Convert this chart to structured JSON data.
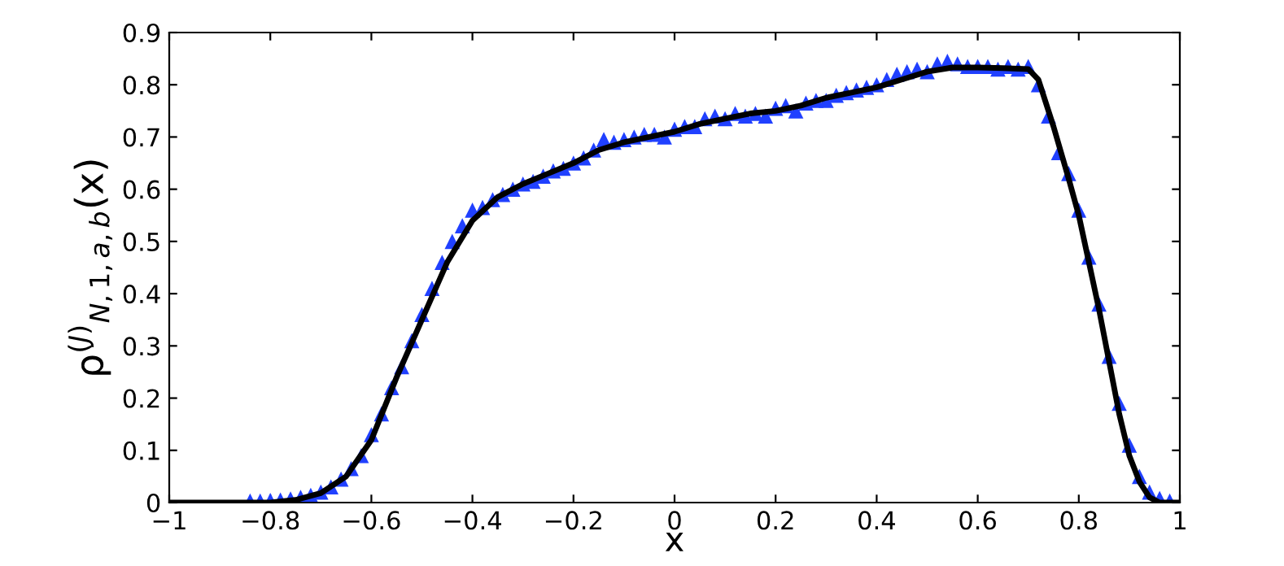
{
  "chart_data": {
    "type": "line",
    "xlabel": "x",
    "ylabel": "ρ$^{(J)}$$_{N,1,a,b}$(x)",
    "xlim": [
      -1,
      1
    ],
    "ylim": [
      0,
      0.9
    ],
    "xticks": [
      {
        "value": -1,
        "label": "−1"
      },
      {
        "value": -0.8,
        "label": "−0.8"
      },
      {
        "value": -0.6,
        "label": "−0.6"
      },
      {
        "value": -0.4,
        "label": "−0.4"
      },
      {
        "value": -0.2,
        "label": "−0.2"
      },
      0,
      0.2,
      0.4,
      0.6,
      0.8,
      1
    ],
    "yticks": [
      0,
      0.1,
      0.2,
      0.3,
      0.4,
      0.5,
      0.6,
      0.7,
      0.8,
      0.9
    ],
    "grid": false,
    "legend": false,
    "series": [
      {
        "type": "scatter",
        "marker": "triangle",
        "color": "#2040ff",
        "x": [
          -0.84,
          -0.82,
          -0.8,
          -0.78,
          -0.76,
          -0.74,
          -0.72,
          -0.7,
          -0.68,
          -0.66,
          -0.64,
          -0.62,
          -0.6,
          -0.58,
          -0.56,
          -0.54,
          -0.52,
          -0.5,
          -0.48,
          -0.46,
          -0.44,
          -0.42,
          -0.4,
          -0.38,
          -0.36,
          -0.34,
          -0.32,
          -0.3,
          -0.28,
          -0.26,
          -0.24,
          -0.22,
          -0.2,
          -0.18,
          -0.16,
          -0.14,
          -0.12,
          -0.1,
          -0.08,
          -0.06,
          -0.04,
          -0.02,
          0,
          0.02,
          0.04,
          0.06,
          0.08,
          0.1,
          0.12,
          0.14,
          0.16,
          0.18,
          0.2,
          0.22,
          0.24,
          0.26,
          0.28,
          0.3,
          0.32,
          0.34,
          0.36,
          0.38,
          0.4,
          0.42,
          0.44,
          0.46,
          0.48,
          0.5,
          0.52,
          0.54,
          0.56,
          0.58,
          0.6,
          0.62,
          0.64,
          0.66,
          0.68,
          0.7,
          0.72,
          0.74,
          0.76,
          0.78,
          0.8,
          0.82,
          0.84,
          0.86,
          0.88,
          0.9,
          0.92,
          0.94,
          0.96,
          0.98
        ],
        "values": [
          0.003,
          0.003,
          0.004,
          0.005,
          0.007,
          0.01,
          0.014,
          0.02,
          0.03,
          0.045,
          0.065,
          0.09,
          0.13,
          0.17,
          0.22,
          0.26,
          0.31,
          0.36,
          0.41,
          0.46,
          0.5,
          0.53,
          0.56,
          0.565,
          0.58,
          0.59,
          0.6,
          0.61,
          0.615,
          0.625,
          0.635,
          0.64,
          0.65,
          0.66,
          0.675,
          0.695,
          0.69,
          0.695,
          0.7,
          0.705,
          0.705,
          0.7,
          0.715,
          0.72,
          0.72,
          0.735,
          0.74,
          0.735,
          0.745,
          0.74,
          0.745,
          0.74,
          0.755,
          0.76,
          0.75,
          0.765,
          0.77,
          0.77,
          0.78,
          0.785,
          0.79,
          0.795,
          0.8,
          0.81,
          0.82,
          0.825,
          0.83,
          0.825,
          0.84,
          0.845,
          0.84,
          0.835,
          0.835,
          0.835,
          0.83,
          0.835,
          0.83,
          0.835,
          0.8,
          0.74,
          0.67,
          0.63,
          0.56,
          0.47,
          0.38,
          0.28,
          0.19,
          0.11,
          0.05,
          0.02,
          0.008,
          0.003
        ]
      },
      {
        "marker": "none",
        "line_style": "solid",
        "color": "#000000",
        "x": [
          -1,
          -0.8,
          -0.75,
          -0.7,
          -0.65,
          -0.6,
          -0.55,
          -0.5,
          -0.45,
          -0.4,
          -0.35,
          -0.3,
          -0.25,
          -0.2,
          -0.15,
          -0.1,
          -0.05,
          0,
          0.05,
          0.1,
          0.15,
          0.2,
          0.25,
          0.3,
          0.35,
          0.4,
          0.45,
          0.5,
          0.55,
          0.6,
          0.65,
          0.7,
          0.72,
          0.75,
          0.78,
          0.8,
          0.82,
          0.84,
          0.86,
          0.88,
          0.9,
          0.92,
          0.94,
          0.96,
          1
        ],
        "values": [
          0,
          0,
          0.005,
          0.018,
          0.05,
          0.12,
          0.24,
          0.35,
          0.46,
          0.54,
          0.585,
          0.61,
          0.63,
          0.65,
          0.675,
          0.69,
          0.7,
          0.71,
          0.725,
          0.735,
          0.745,
          0.75,
          0.76,
          0.775,
          0.785,
          0.795,
          0.81,
          0.825,
          0.833,
          0.833,
          0.832,
          0.83,
          0.81,
          0.72,
          0.62,
          0.55,
          0.46,
          0.37,
          0.27,
          0.17,
          0.09,
          0.04,
          0.01,
          0,
          0
        ]
      }
    ]
  }
}
